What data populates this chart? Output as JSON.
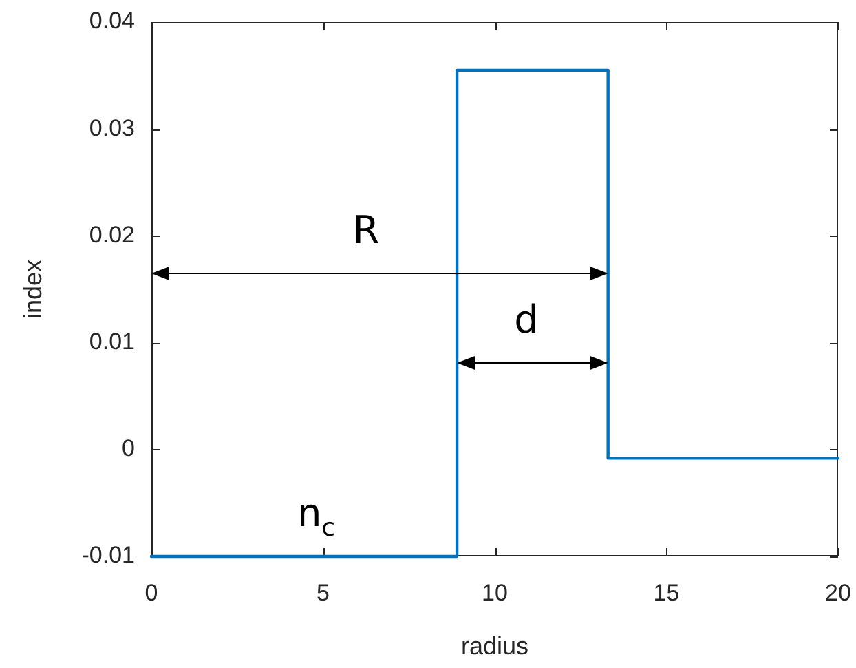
{
  "chart_data": {
    "type": "step",
    "xlabel": "radius",
    "ylabel": "index",
    "x": [
      0,
      8.9,
      13.3,
      20
    ],
    "series": [
      {
        "color": "#0072bd",
        "values": [
          -0.01,
          0.0355,
          -0.0008,
          -0.0008
        ]
      }
    ],
    "xlim": [
      0,
      20
    ],
    "xticks": [
      0,
      5,
      10,
      15,
      20
    ],
    "ylim": [
      -0.01,
      0.04
    ],
    "yticks": [
      -0.01,
      0,
      0.01,
      0.02,
      0.03,
      0.04
    ],
    "marker": "none",
    "line_style": "solid",
    "annotations": [
      "R",
      "d",
      {
        "text": "n$_{c}$",
        "x": 4.8,
        "y": -0.01
      }
    ]
  }
}
